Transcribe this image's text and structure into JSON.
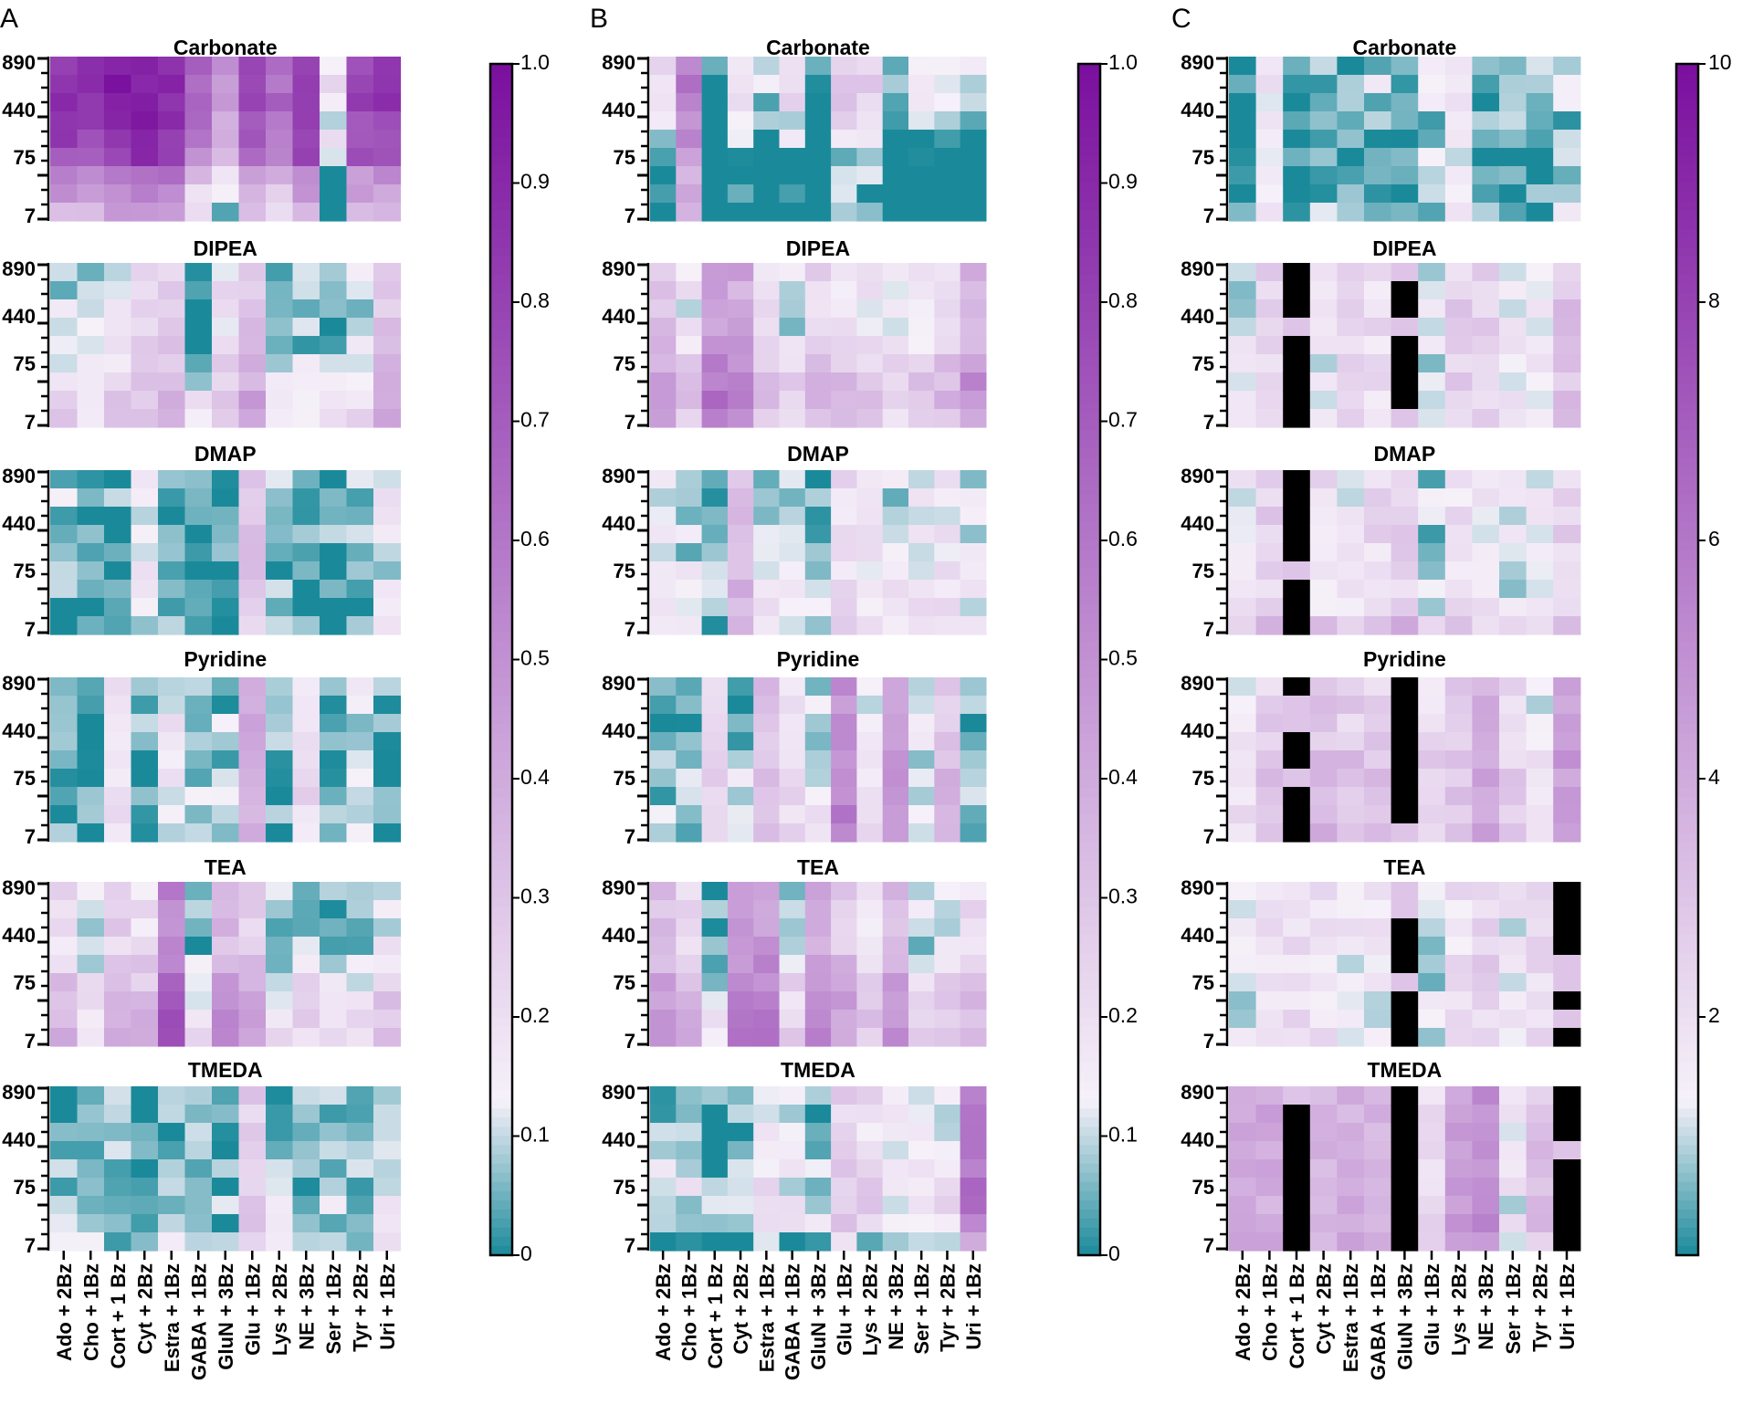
{
  "figure": {
    "panels": [
      "A",
      "B",
      "C"
    ],
    "colors": {
      "low": "#1a8a9a",
      "mid": "#f6f1f9",
      "high": "#7a0f9e",
      "missing": "#000000"
    }
  },
  "chart_data": [
    {
      "panel": "A",
      "type": "heatmap",
      "colorbar": {
        "min": 0,
        "max": 1.0,
        "ticks": [
          "0",
          "0.1",
          "0.2",
          "0.3",
          "0.4",
          "0.5",
          "0.6",
          "0.7",
          "0.8",
          "0.9",
          "1.0"
        ]
      },
      "ytick_labels": [
        "890",
        "440",
        "75",
        "7"
      ],
      "categories": [
        "Ado + 2Bz",
        "Cho + 1Bz",
        "Cort + 1 Bz",
        "Cyt + 2Bz",
        "Estra + 1Bz",
        "GABA + 1Bz",
        "GluN + 3Bz",
        "Glu + 1Bz",
        "Lys + 2Bz",
        "NE + 3Bz",
        "Ser + 1Bz",
        "Tyr + 2Bz",
        "Uri + 1Bz"
      ],
      "subplots": [
        {
          "title": "Carbonate",
          "col_profile": [
            0.8,
            0.8,
            0.9,
            0.9,
            0.85,
            0.6,
            0.45,
            0.75,
            0.6,
            0.8,
            0.15,
            0.75,
            0.8
          ],
          "row_shift": [
            0.05,
            0.05,
            0.05,
            0,
            0,
            -0.05,
            -0.25,
            -0.35,
            -0.45
          ]
        },
        {
          "title": "DIPEA",
          "col_profile": [
            0.1,
            0.07,
            0.15,
            0.2,
            0.25,
            0.02,
            0.18,
            0.3,
            0.05,
            0.05,
            0.02,
            0.08,
            0.3
          ],
          "row_shift": [
            0,
            0,
            0,
            0,
            0.02,
            0.05,
            0.08,
            0.12,
            0.15
          ]
        },
        {
          "title": "DMAP",
          "col_profile": [
            0.06,
            0.05,
            0.04,
            0.15,
            0.06,
            0.02,
            0.03,
            0.3,
            0.07,
            0.06,
            0.05,
            0.06,
            0.15
          ],
          "row_shift": [
            0,
            0,
            -0.01,
            -0.01,
            -0.02,
            -0.02,
            -0.02,
            -0.03,
            -0.03
          ]
        },
        {
          "title": "Pyridine",
          "col_profile": [
            0.02,
            0.02,
            0.2,
            0.02,
            0.15,
            0.07,
            0.06,
            0.35,
            0.05,
            0.22,
            0.05,
            0.1,
            0.03
          ],
          "row_shift": [
            0,
            0,
            0.02,
            0.02,
            0,
            0,
            0,
            0,
            0
          ]
        },
        {
          "title": "TEA",
          "col_profile": [
            0.2,
            0.07,
            0.25,
            0.2,
            0.55,
            0.05,
            0.35,
            0.25,
            0.06,
            0.1,
            0.03,
            0.05,
            0.15
          ],
          "row_shift": [
            0,
            0,
            0,
            0,
            0.05,
            0.1,
            0.12,
            0.15,
            0.15
          ]
        },
        {
          "title": "TMEDA",
          "col_profile": [
            0.02,
            0.02,
            0.04,
            0.02,
            0.06,
            0.06,
            0.02,
            0.25,
            0.05,
            0.04,
            0.05,
            0.05,
            0.1
          ],
          "row_shift": [
            0,
            0,
            0,
            0.02,
            0.03,
            0.03,
            0.05,
            0.05,
            0.05
          ]
        }
      ]
    },
    {
      "panel": "B",
      "type": "heatmap",
      "colorbar": {
        "min": 0,
        "max": 1.0,
        "ticks": [
          "0",
          "0.1",
          "0.2",
          "0.3",
          "0.4",
          "0.5",
          "0.6",
          "0.7",
          "0.8",
          "0.9",
          "1.0"
        ]
      },
      "ytick_labels": [
        "890",
        "440",
        "75",
        "7"
      ],
      "categories": [
        "Ado + 2Bz",
        "Cho + 1Bz",
        "Cort + 1 Bz",
        "Cyt + 2Bz",
        "Estra + 1Bz",
        "GABA + 1Bz",
        "GluN + 3Bz",
        "Glu + 1Bz",
        "Lys + 2Bz",
        "NE + 3Bz",
        "Ser + 1Bz",
        "Tyr + 2Bz",
        "Uri + 1Bz"
      ],
      "subplots": [
        {
          "title": "Carbonate",
          "col_profile": [
            0.2,
            0.6,
            0.02,
            0.2,
            0.08,
            0.2,
            0.02,
            0.3,
            0.25,
            0.07,
            0.15,
            0.12,
            0.12
          ],
          "row_shift": [
            0,
            0,
            0,
            -0.05,
            -0.1,
            -0.2,
            -0.2,
            -0.2,
            -0.2
          ]
        },
        {
          "title": "DIPEA",
          "col_profile": [
            0.3,
            0.15,
            0.45,
            0.4,
            0.2,
            0.1,
            0.25,
            0.2,
            0.15,
            0.12,
            0.15,
            0.2,
            0.35
          ],
          "row_shift": [
            0,
            0,
            0,
            0,
            0.05,
            0.1,
            0.15,
            0.15,
            0.1
          ]
        },
        {
          "title": "DMAP",
          "col_profile": [
            0.12,
            0.1,
            0.02,
            0.3,
            0.1,
            0.08,
            0.04,
            0.2,
            0.15,
            0.1,
            0.12,
            0.15,
            0.1
          ],
          "row_shift": [
            0,
            0,
            0,
            0,
            0,
            0.02,
            0.05,
            0.05,
            0.05
          ]
        },
        {
          "title": "Pyridine",
          "col_profile": [
            0.02,
            0.02,
            0.2,
            0.05,
            0.3,
            0.15,
            0.1,
            0.5,
            0.15,
            0.45,
            0.1,
            0.3,
            0.05
          ],
          "row_shift": [
            0,
            0,
            0,
            0,
            0.02,
            0.05,
            0.05,
            0.05,
            0.05
          ]
        },
        {
          "title": "TEA",
          "col_profile": [
            0.3,
            0.2,
            0.02,
            0.45,
            0.45,
            0.12,
            0.4,
            0.3,
            0.15,
            0.35,
            0.1,
            0.15,
            0.2
          ],
          "row_shift": [
            0,
            0,
            0,
            0,
            0.05,
            0.1,
            0.12,
            0.15,
            0.15
          ]
        },
        {
          "title": "TMEDA",
          "col_profile": [
            0.08,
            0.08,
            0.02,
            0.06,
            0.15,
            0.1,
            0.05,
            0.25,
            0.2,
            0.12,
            0.15,
            0.15,
            0.55
          ],
          "row_shift": [
            0,
            0,
            0,
            0,
            0.02,
            0.05,
            0.05,
            0.05,
            -0.1
          ]
        }
      ]
    },
    {
      "panel": "C",
      "type": "heatmap",
      "colorbar": {
        "min": 0,
        "max": 10,
        "ticks": [
          "2",
          "4",
          "6",
          "8",
          "10"
        ]
      },
      "ytick_labels": [
        "890",
        "440",
        "75",
        "7"
      ],
      "categories": [
        "Ado + 2Bz",
        "Cho + 1Bz",
        "Cort + 1 Bz",
        "Cyt + 2Bz",
        "Estra + 1Bz",
        "GABA + 1Bz",
        "GluN + 3Bz",
        "Glu + 1Bz",
        "Lys + 2Bz",
        "NE + 3Bz",
        "Ser + 1Bz",
        "Tyr + 2Bz",
        "Uri + 1Bz"
      ],
      "subplots": [
        {
          "title": "Carbonate",
          "col_profile": [
            0.03,
            0.15,
            0.02,
            0.05,
            0.04,
            0.1,
            0.03,
            0.1,
            0.15,
            0.04,
            0.06,
            0.05,
            0.1
          ],
          "row_shift": [
            0,
            0,
            0,
            -0.02,
            -0.03,
            -0.03,
            -0.03,
            -0.03,
            0
          ]
        },
        {
          "title": "DIPEA",
          "col_profile": [
            0.12,
            0.25,
            -1,
            0.15,
            0.22,
            0.2,
            -1,
            0.1,
            0.25,
            0.25,
            0.15,
            0.15,
            0.3
          ],
          "row_shift": [
            0,
            0,
            0,
            0,
            0,
            0,
            0,
            0,
            0
          ]
        },
        {
          "title": "DMAP",
          "col_profile": [
            0.15,
            0.25,
            -1,
            0.2,
            0.15,
            0.22,
            0.25,
            0.08,
            0.2,
            0.15,
            0.12,
            0.12,
            0.25
          ],
          "row_shift": [
            0,
            0,
            0,
            0,
            0,
            0,
            0,
            0,
            0.1
          ]
        },
        {
          "title": "Pyridine",
          "col_profile": [
            0.15,
            0.25,
            -1,
            0.3,
            0.25,
            0.25,
            -1,
            0.2,
            0.25,
            0.35,
            0.2,
            0.15,
            0.4
          ],
          "row_shift": [
            0,
            0,
            0,
            0,
            0.05,
            0.05,
            0.05,
            0.05,
            0.05
          ]
        },
        {
          "title": "TEA",
          "col_profile": [
            0.12,
            0.2,
            0.2,
            0.2,
            0.15,
            0.15,
            -1,
            0.1,
            0.2,
            0.25,
            0.15,
            0.2,
            -1
          ],
          "row_shift": [
            0,
            0,
            0,
            0,
            0,
            0,
            0,
            0,
            0
          ]
        },
        {
          "title": "TMEDA",
          "col_profile": [
            0.45,
            0.4,
            -1,
            0.35,
            0.4,
            0.35,
            -1,
            0.2,
            0.45,
            0.5,
            0.15,
            0.3,
            -1
          ],
          "row_shift": [
            0,
            0,
            0,
            0,
            0,
            0,
            0,
            0,
            0
          ]
        }
      ]
    }
  ]
}
